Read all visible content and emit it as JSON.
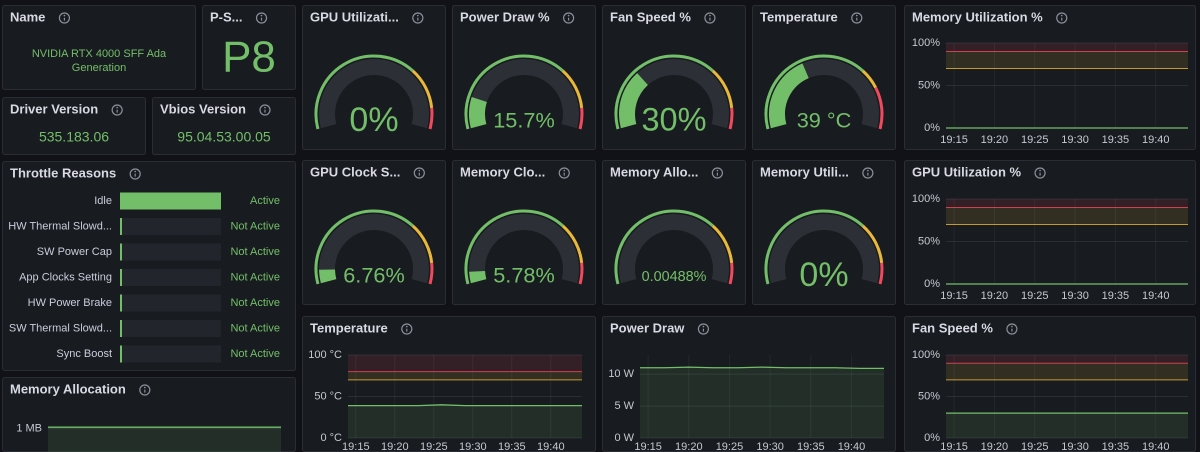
{
  "panels": {
    "name": {
      "title": "Name",
      "value": "NVIDIA RTX 4000 SFF Ada Generation"
    },
    "p_state": {
      "title": "P-S...",
      "value": "P8"
    },
    "driver_version": {
      "title": "Driver Version",
      "value": "535.183.06"
    },
    "vbios_version": {
      "title": "Vbios Version",
      "value": "95.04.53.00.05"
    }
  },
  "chart_data": [
    {
      "type": "bar",
      "title": "Throttle Reasons",
      "color": "#73bf69",
      "xlim": [
        0,
        1
      ],
      "categories": [
        "Idle",
        "HW Thermal Slowd...",
        "SW Power Cap",
        "App Clocks Setting",
        "HW Power Brake",
        "SW Thermal Slowd...",
        "Sync Boost"
      ],
      "values": [
        1,
        0,
        0,
        0,
        0,
        0,
        0
      ],
      "value_labels": [
        "Active",
        "Not Active",
        "Not Active",
        "Not Active",
        "Not Active",
        "Not Active",
        "Not Active"
      ]
    },
    {
      "type": "gauge",
      "title": "GPU Utilizati...",
      "values": [
        0
      ],
      "value_labels": [
        "0%"
      ],
      "ylim": [
        0,
        100
      ],
      "color": "#73bf69",
      "thresholds": [
        {
          "value": 70,
          "color": "#EAB839"
        },
        {
          "value": 90,
          "color": "#F2495C"
        }
      ]
    },
    {
      "type": "gauge",
      "title": "Power Draw %",
      "values": [
        15.7
      ],
      "value_labels": [
        "15.7%"
      ],
      "ylim": [
        0,
        100
      ],
      "color": "#73bf69",
      "thresholds": [
        {
          "value": 70,
          "color": "#EAB839"
        },
        {
          "value": 90,
          "color": "#F2495C"
        }
      ]
    },
    {
      "type": "gauge",
      "title": "Fan Speed %",
      "values": [
        30
      ],
      "value_labels": [
        "30%"
      ],
      "ylim": [
        0,
        100
      ],
      "color": "#73bf69",
      "thresholds": [
        {
          "value": 70,
          "color": "#EAB839"
        },
        {
          "value": 90,
          "color": "#F2495C"
        }
      ]
    },
    {
      "type": "gauge",
      "title": "Temperature",
      "values": [
        39
      ],
      "value_labels": [
        "39 °C"
      ],
      "ylim": [
        0,
        100
      ],
      "color": "#73bf69",
      "thresholds": [
        {
          "value": 70,
          "color": "#EAB839"
        },
        {
          "value": 80,
          "color": "#F2495C"
        }
      ]
    },
    {
      "type": "gauge",
      "title": "GPU Clock S...",
      "values": [
        6.76
      ],
      "value_labels": [
        "6.76%"
      ],
      "ylim": [
        0,
        100
      ],
      "color": "#73bf69",
      "thresholds": [
        {
          "value": 70,
          "color": "#EAB839"
        },
        {
          "value": 90,
          "color": "#F2495C"
        }
      ]
    },
    {
      "type": "gauge",
      "title": "Memory Clo...",
      "values": [
        5.78
      ],
      "value_labels": [
        "5.78%"
      ],
      "ylim": [
        0,
        100
      ],
      "color": "#73bf69",
      "thresholds": [
        {
          "value": 70,
          "color": "#EAB839"
        },
        {
          "value": 90,
          "color": "#F2495C"
        }
      ]
    },
    {
      "type": "gauge",
      "title": "Memory Allo...",
      "values": [
        0.00488
      ],
      "value_labels": [
        "0.00488%"
      ],
      "ylim": [
        0,
        100
      ],
      "color": "#73bf69",
      "thresholds": [
        {
          "value": 70,
          "color": "#EAB839"
        },
        {
          "value": 90,
          "color": "#F2495C"
        }
      ]
    },
    {
      "type": "gauge",
      "title": "Memory Utili...",
      "values": [
        0
      ],
      "value_labels": [
        "0%"
      ],
      "ylim": [
        0,
        100
      ],
      "color": "#73bf69",
      "thresholds": [
        {
          "value": 70,
          "color": "#EAB839"
        },
        {
          "value": 90,
          "color": "#F2495C"
        }
      ]
    },
    {
      "type": "line",
      "title": "Memory Utilization %",
      "x": [
        "19:14",
        "19:17",
        "19:20",
        "19:23",
        "19:26",
        "19:29",
        "19:32",
        "19:35",
        "19:38",
        "19:41",
        "19:44"
      ],
      "series": [
        {
          "color": "#73bf69",
          "values": [
            0,
            0,
            0,
            0,
            0,
            0,
            0,
            0,
            0,
            0,
            0
          ]
        }
      ],
      "xlim": [
        "19:14",
        "19:44"
      ],
      "xticks": [
        "19:15",
        "19:20",
        "19:25",
        "19:30",
        "19:35",
        "19:40"
      ],
      "ylim": [
        0,
        100
      ],
      "yticks": [
        {
          "value": 0,
          "label": "0%"
        },
        {
          "value": 50,
          "label": "50%"
        },
        {
          "value": 100,
          "label": "100%"
        }
      ],
      "thresholds": [
        {
          "value": 70,
          "color": "#EAB839"
        },
        {
          "value": 90,
          "color": "#F2495C"
        }
      ]
    },
    {
      "type": "line",
      "title": "GPU Utilization %",
      "x": [
        "19:14",
        "19:17",
        "19:20",
        "19:23",
        "19:26",
        "19:29",
        "19:32",
        "19:35",
        "19:38",
        "19:41",
        "19:44"
      ],
      "series": [
        {
          "color": "#73bf69",
          "values": [
            0,
            0,
            0,
            0,
            0,
            0,
            0,
            0,
            0,
            0,
            0
          ]
        }
      ],
      "xlim": [
        "19:14",
        "19:44"
      ],
      "xticks": [
        "19:15",
        "19:20",
        "19:25",
        "19:30",
        "19:35",
        "19:40"
      ],
      "ylim": [
        0,
        100
      ],
      "yticks": [
        {
          "value": 0,
          "label": "0%"
        },
        {
          "value": 50,
          "label": "50%"
        },
        {
          "value": 100,
          "label": "100%"
        }
      ],
      "thresholds": [
        {
          "value": 70,
          "color": "#EAB839"
        },
        {
          "value": 90,
          "color": "#F2495C"
        }
      ]
    },
    {
      "type": "line",
      "title": "Temperature",
      "x": [
        "19:14",
        "19:17",
        "19:20",
        "19:23",
        "19:26",
        "19:29",
        "19:32",
        "19:35",
        "19:38",
        "19:41",
        "19:44"
      ],
      "series": [
        {
          "color": "#73bf69",
          "values": [
            39,
            39,
            39,
            39,
            40,
            39,
            39,
            39,
            39,
            39,
            39
          ]
        }
      ],
      "xlim": [
        "19:14",
        "19:44"
      ],
      "xticks": [
        "19:15",
        "19:20",
        "19:25",
        "19:30",
        "19:35",
        "19:40"
      ],
      "ylim": [
        0,
        100
      ],
      "yticks": [
        {
          "value": 0,
          "label": "0 °C"
        },
        {
          "value": 50,
          "label": "50 °C"
        },
        {
          "value": 100,
          "label": "100 °C"
        }
      ],
      "thresholds": [
        {
          "value": 70,
          "color": "#EAB839"
        },
        {
          "value": 80,
          "color": "#F2495C"
        }
      ]
    },
    {
      "type": "line",
      "title": "Power Draw",
      "x": [
        "19:14",
        "19:17",
        "19:20",
        "19:23",
        "19:26",
        "19:29",
        "19:32",
        "19:35",
        "19:38",
        "19:41",
        "19:44"
      ],
      "series": [
        {
          "color": "#73bf69",
          "values": [
            11,
            11,
            11.1,
            11,
            11,
            11.1,
            11,
            11,
            11,
            10.9,
            10.9
          ]
        }
      ],
      "xlim": [
        "19:14",
        "19:44"
      ],
      "xticks": [
        "19:15",
        "19:20",
        "19:25",
        "19:30",
        "19:35",
        "19:40"
      ],
      "ylim": [
        0,
        13
      ],
      "yticks": [
        {
          "value": 0,
          "label": "0 W"
        },
        {
          "value": 5,
          "label": "5 W"
        },
        {
          "value": 10,
          "label": "10 W"
        }
      ]
    },
    {
      "type": "line",
      "title": "Fan Speed %",
      "x": [
        "19:14",
        "19:17",
        "19:20",
        "19:23",
        "19:26",
        "19:29",
        "19:32",
        "19:35",
        "19:38",
        "19:41",
        "19:44"
      ],
      "series": [
        {
          "color": "#73bf69",
          "values": [
            30,
            30,
            30,
            30,
            30,
            30,
            30,
            30,
            30,
            30,
            30
          ]
        }
      ],
      "xlim": [
        "19:14",
        "19:44"
      ],
      "xticks": [
        "19:15",
        "19:20",
        "19:25",
        "19:30",
        "19:35",
        "19:40"
      ],
      "ylim": [
        0,
        100
      ],
      "yticks": [
        {
          "value": 0,
          "label": "0%"
        },
        {
          "value": 50,
          "label": "50%"
        },
        {
          "value": 100,
          "label": "100%"
        }
      ],
      "thresholds": [
        {
          "value": 70,
          "color": "#EAB839"
        },
        {
          "value": 90,
          "color": "#F2495C"
        }
      ]
    },
    {
      "type": "line",
      "title": "Memory Allocation",
      "x": [
        "19:14",
        "19:17",
        "19:20",
        "19:23",
        "19:26",
        "19:29",
        "19:32",
        "19:35",
        "19:38",
        "19:41",
        "19:44"
      ],
      "series": [
        {
          "color": "#73bf69",
          "values": [
            1.02,
            1.02,
            1.02,
            1.02,
            1.02,
            1.02,
            1.02,
            1.02,
            1.02,
            1.02,
            1.02
          ]
        }
      ],
      "xlim": [
        "19:14",
        "19:44"
      ],
      "ylim": [
        0.7,
        1.1
      ],
      "yticks": [
        {
          "value": 1,
          "label": "1 MB"
        }
      ]
    }
  ]
}
